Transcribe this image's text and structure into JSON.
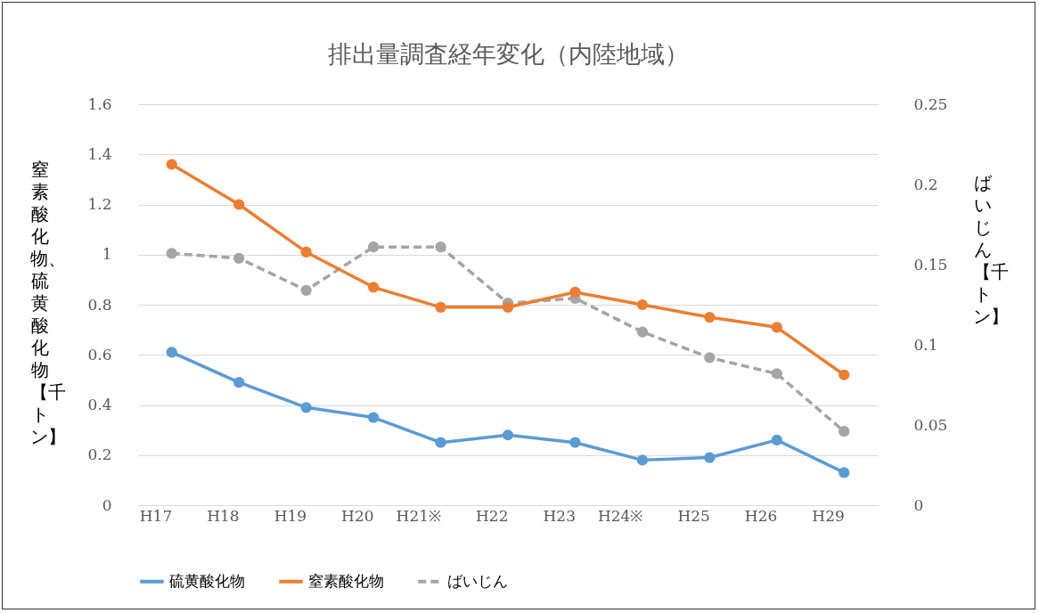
{
  "chart_data": {
    "type": "line",
    "title": "排出量調査経年変化（内陸地域）",
    "ylabel": "窒素酸化物、硫黄酸化物【千トン】",
    "y2label": "ばいじん【千トン】",
    "categories": [
      "H17",
      "H18",
      "H19",
      "H20",
      "H21※",
      "H22",
      "H23",
      "H24※",
      "H25",
      "H26",
      "H29"
    ],
    "series": [
      {
        "name": "硫黄酸化物",
        "color": "#5b9bd5",
        "line_style": "solid",
        "values": [
          0.61,
          0.49,
          0.39,
          0.35,
          0.25,
          0.28,
          0.25,
          0.18,
          0.19,
          0.26,
          0.13
        ]
      },
      {
        "name": "窒素酸化物",
        "color": "#ed7d31",
        "line_style": "solid",
        "values": [
          1.36,
          1.2,
          1.01,
          0.87,
          0.79,
          0.79,
          0.85,
          0.8,
          0.75,
          0.71,
          0.52
        ]
      },
      {
        "name": "ばいじん",
        "color": "#a5a5a5",
        "line_style": "dashed",
        "axis": "y2",
        "values": [
          0.157,
          0.154,
          0.134,
          0.161,
          0.161,
          0.126,
          0.129,
          0.108,
          0.092,
          0.082,
          0.046
        ]
      }
    ],
    "ylim": [
      0,
      1.6
    ],
    "yticks": [
      0,
      0.2,
      0.4,
      0.6,
      0.8,
      1,
      1.2,
      1.4,
      1.6
    ],
    "y2lim": [
      0,
      0.25
    ],
    "y2ticks": [
      0,
      0.05,
      0.1,
      0.15,
      0.2,
      0.25
    ],
    "grid": "y",
    "legend": "bottom",
    "marker": "circle"
  }
}
